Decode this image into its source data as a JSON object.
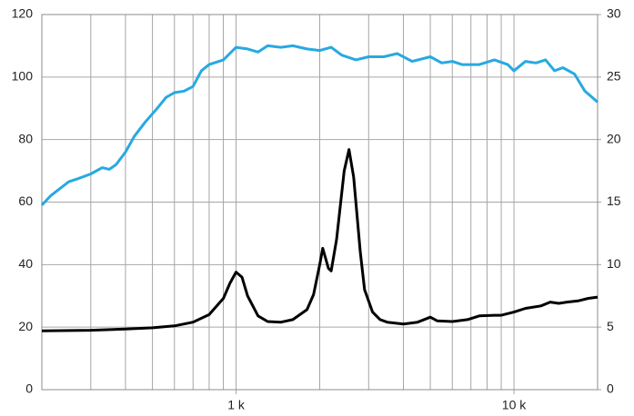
{
  "chart_data": {
    "type": "line",
    "x_scale": "log",
    "xlim": [
      200,
      20000
    ],
    "xticks": [
      {
        "value": 1000,
        "label": "1 k"
      },
      {
        "value": 10000,
        "label": "10 k"
      }
    ],
    "xgrid": [
      200,
      300,
      400,
      500,
      600,
      700,
      800,
      900,
      1000,
      2000,
      3000,
      4000,
      5000,
      6000,
      7000,
      8000,
      9000,
      10000,
      20000
    ],
    "ylim": [
      0,
      120
    ],
    "yticks": [
      0,
      20,
      40,
      60,
      80,
      100,
      120
    ],
    "y2lim": [
      0,
      30
    ],
    "y2ticks": [
      0,
      5,
      10,
      15,
      20,
      25,
      30
    ],
    "grid": true,
    "series": [
      {
        "color": "#27a9e1",
        "x": [
          200,
          215,
          230,
          250,
          270,
          300,
          330,
          350,
          370,
          400,
          430,
          470,
          520,
          560,
          600,
          650,
          700,
          750,
          800,
          900,
          1000,
          1100,
          1200,
          1300,
          1450,
          1600,
          1800,
          2000,
          2200,
          2400,
          2700,
          3000,
          3400,
          3800,
          4300,
          5000,
          5500,
          6000,
          6500,
          7500,
          8500,
          9500,
          10000,
          11000,
          12000,
          13000,
          14000,
          15000,
          16500,
          18000,
          20000
        ],
        "values": [
          59,
          62,
          64,
          66.5,
          67.5,
          69,
          71,
          70.5,
          72,
          76,
          81,
          85.5,
          90,
          93.5,
          95,
          95.5,
          97,
          102,
          104,
          105.5,
          109.5,
          109,
          108,
          110,
          109.5,
          110,
          109,
          108.5,
          109.5,
          107,
          105.5,
          106.5,
          106.5,
          107.5,
          105,
          106.5,
          104.5,
          105,
          104,
          104,
          105.5,
          104,
          102,
          105,
          104.5,
          105.5,
          102,
          103,
          101,
          95.5,
          92
        ]
      },
      {
        "color": "#000000",
        "axis": "y2",
        "x": [
          200,
          300,
          400,
          500,
          600,
          700,
          800,
          900,
          950,
          1000,
          1050,
          1100,
          1200,
          1300,
          1450,
          1600,
          1800,
          1900,
          2000,
          2050,
          2150,
          2200,
          2300,
          2450,
          2550,
          2650,
          2800,
          2900,
          3100,
          3300,
          3500,
          4000,
          4500,
          5000,
          5300,
          6000,
          6800,
          7500,
          8500,
          9000,
          10000,
          11000,
          12500,
          13500,
          14500,
          15500,
          17000,
          18500,
          20000
        ],
        "values": [
          4.7,
          4.75,
          4.85,
          4.95,
          5.1,
          5.4,
          6.0,
          7.3,
          8.5,
          9.4,
          9.0,
          7.5,
          5.9,
          5.45,
          5.4,
          5.6,
          6.4,
          7.6,
          10.0,
          11.3,
          9.7,
          9.5,
          12.0,
          17.5,
          19.2,
          17.0,
          11.0,
          8.0,
          6.2,
          5.6,
          5.4,
          5.25,
          5.4,
          5.8,
          5.5,
          5.45,
          5.6,
          5.9,
          5.95,
          5.95,
          6.2,
          6.5,
          6.7,
          7.0,
          6.9,
          7.0,
          7.1,
          7.3,
          7.4
        ]
      }
    ]
  }
}
